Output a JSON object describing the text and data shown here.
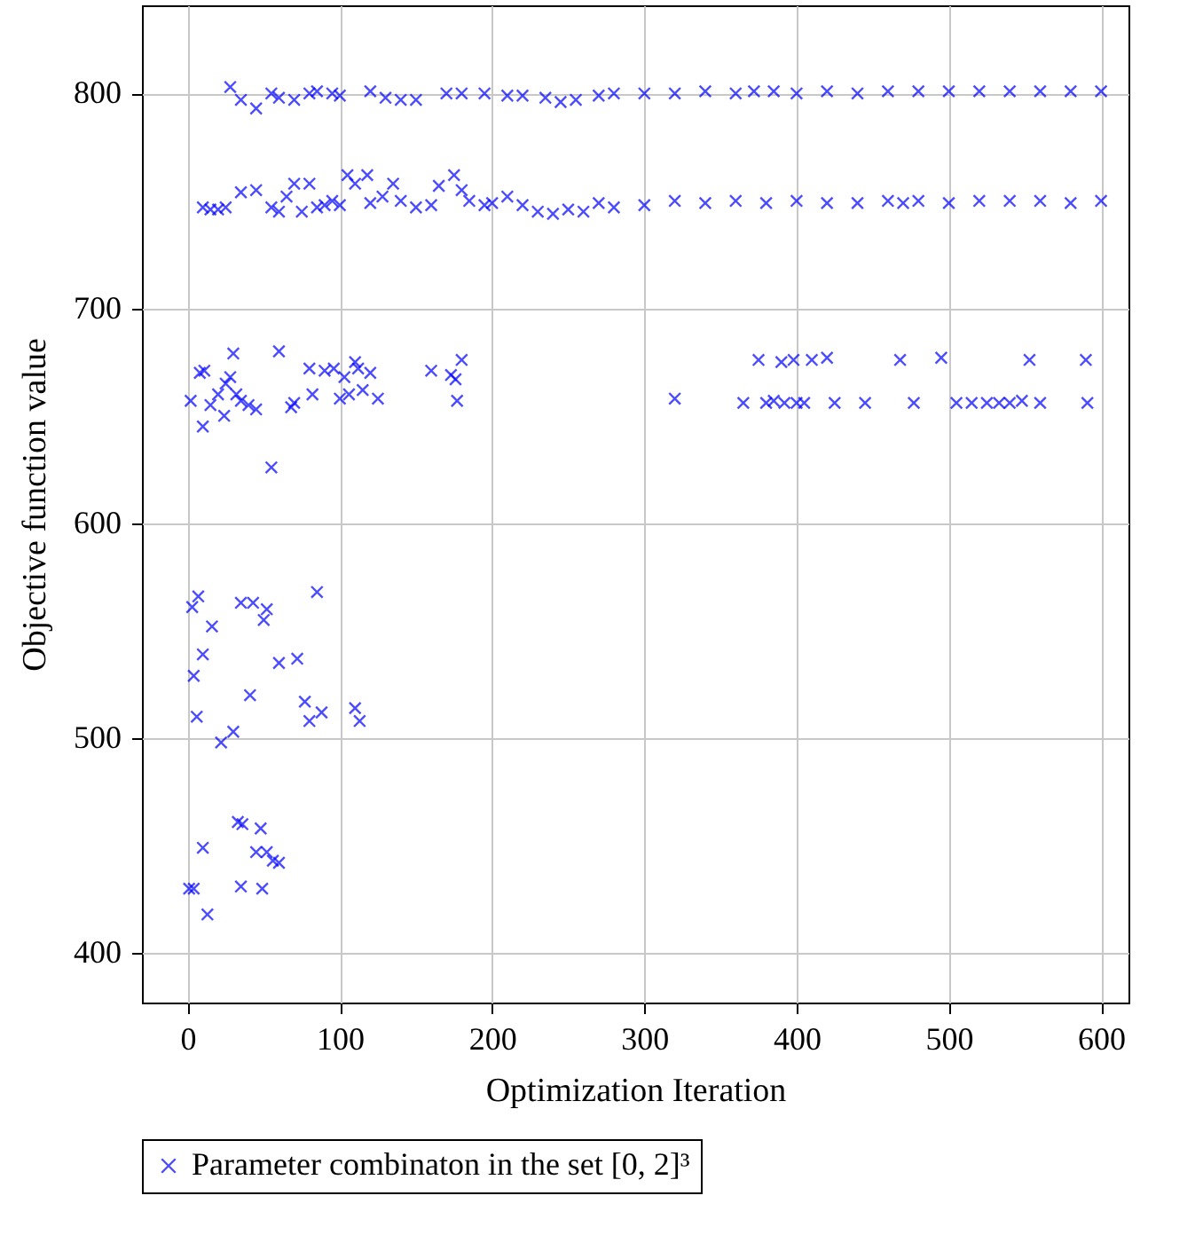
{
  "chart_data": {
    "type": "scatter",
    "xlabel": "Optimization Iteration",
    "ylabel": "Objective function value",
    "xlim": [
      -30,
      618
    ],
    "ylim": [
      377,
      841
    ],
    "xticks": [
      0,
      100,
      200,
      300,
      400,
      500,
      600
    ],
    "yticks": [
      400,
      500,
      600,
      700,
      800
    ],
    "grid": true,
    "legend": "bottom",
    "marker": "cross",
    "series": [
      {
        "name": "Parameter combinaton in the set [0, 2]³",
        "color": "#0000ff",
        "x": [
          1,
          4,
          10,
          13,
          33,
          36,
          35,
          48,
          45,
          49,
          52,
          56,
          60,
          3,
          7,
          4,
          10,
          6,
          16,
          22,
          30,
          35,
          43,
          41,
          50,
          52,
          60,
          72,
          77,
          80,
          85,
          88,
          110,
          113,
          2,
          8,
          11,
          10,
          15,
          20,
          24,
          25,
          28,
          30,
          32,
          35,
          40,
          45,
          55,
          60,
          68,
          70,
          80,
          82,
          90,
          96,
          100,
          103,
          106,
          110,
          112,
          115,
          120,
          125,
          160,
          173,
          177,
          180,
          176,
          320,
          365,
          375,
          380,
          385,
          390,
          392,
          398,
          400,
          405,
          410,
          420,
          425,
          445,
          468,
          477,
          495,
          505,
          515,
          525,
          533,
          540,
          548,
          553,
          560,
          590,
          591,
          10,
          15,
          20,
          25,
          35,
          45,
          55,
          60,
          65,
          70,
          75,
          80,
          85,
          90,
          95,
          100,
          105,
          110,
          118,
          120,
          128,
          135,
          140,
          150,
          160,
          165,
          175,
          180,
          185,
          195,
          200,
          210,
          220,
          230,
          240,
          250,
          260,
          270,
          280,
          300,
          320,
          340,
          360,
          380,
          400,
          420,
          440,
          460,
          470,
          480,
          500,
          520,
          540,
          560,
          580,
          600,
          28,
          35,
          45,
          55,
          60,
          70,
          80,
          85,
          95,
          100,
          120,
          130,
          140,
          150,
          170,
          180,
          195,
          210,
          220,
          235,
          245,
          255,
          270,
          280,
          300,
          320,
          340,
          360,
          372,
          385,
          400,
          420,
          440,
          460,
          480,
          500,
          520,
          540,
          560,
          580,
          600
        ],
        "values": [
          430,
          430,
          449,
          418,
          461,
          460,
          431,
          458,
          447,
          430,
          447,
          443,
          442,
          561,
          566,
          529,
          539,
          510,
          552,
          498,
          503,
          563,
          563,
          520,
          555,
          560,
          535,
          537,
          517,
          508,
          568,
          512,
          514,
          508,
          657,
          670,
          671,
          645,
          655,
          660,
          650,
          665,
          668,
          679,
          660,
          657,
          655,
          653,
          626,
          680,
          654,
          656,
          672,
          660,
          671,
          672,
          658,
          668,
          660,
          675,
          672,
          662,
          670,
          658,
          671,
          669,
          657,
          676,
          667,
          658,
          656,
          676,
          656,
          657,
          675,
          656,
          676,
          656,
          656,
          676,
          677,
          656,
          656,
          676,
          656,
          677,
          656,
          656,
          656,
          656,
          656,
          657,
          676,
          656,
          676,
          656,
          747,
          746,
          746,
          747,
          754,
          755,
          747,
          745,
          752,
          758,
          745,
          758,
          747,
          748,
          750,
          748,
          762,
          758,
          762,
          749,
          752,
          758,
          750,
          747,
          748,
          757,
          762,
          755,
          750,
          748,
          749,
          752,
          748,
          745,
          744,
          746,
          745,
          749,
          747,
          748,
          750,
          749,
          750,
          749,
          750,
          749,
          749,
          750,
          749,
          750,
          749,
          750,
          750,
          750,
          749,
          750,
          803,
          797,
          793,
          800,
          798,
          797,
          800,
          801,
          800,
          799,
          801,
          798,
          797,
          797,
          800,
          800,
          800,
          799,
          799,
          798,
          796,
          797,
          799,
          800,
          800,
          800,
          801,
          800,
          801,
          801,
          800,
          801,
          800,
          801,
          801,
          801,
          801,
          801,
          801,
          801,
          801
        ]
      }
    ]
  }
}
